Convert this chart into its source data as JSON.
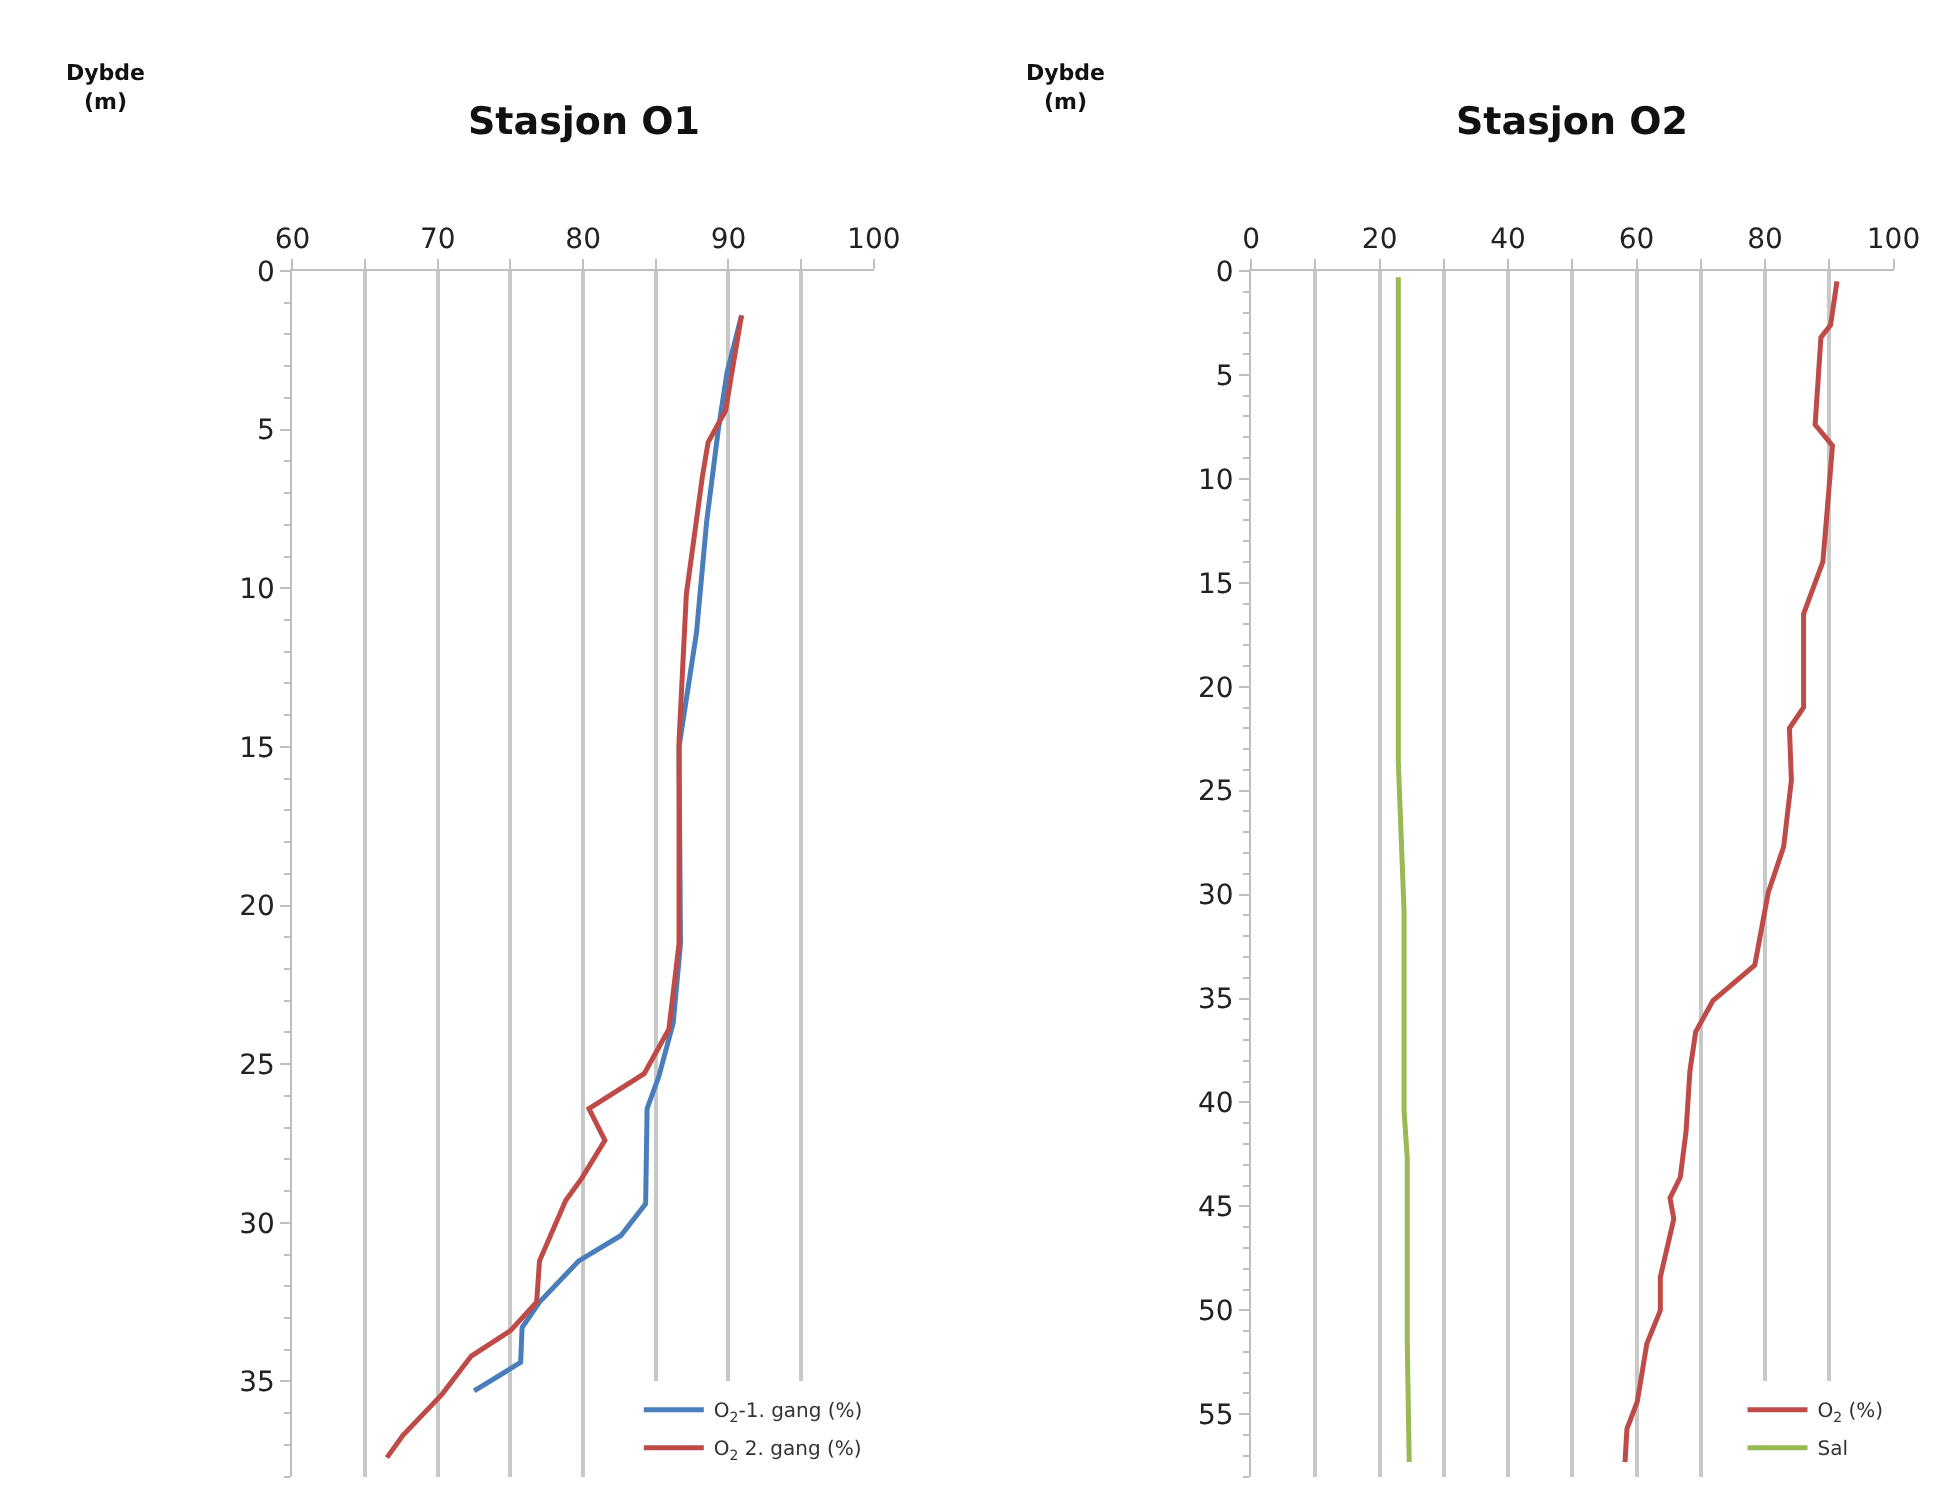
{
  "chart_data": [
    {
      "type": "line",
      "title": "Stasjon O1",
      "ylabel": "Dybde\n(m)",
      "legend": "bottom right",
      "grid": "x",
      "xlim": [
        60,
        100
      ],
      "xticks": [
        60,
        {
          "value": 65,
          "label": null
        },
        70,
        {
          "value": 75,
          "label": null
        },
        80,
        {
          "value": 85,
          "label": null
        },
        90,
        {
          "value": 95,
          "label": null
        },
        100
      ],
      "ylim": [
        38,
        0
      ],
      "yticks": [
        0,
        5,
        10,
        15,
        20,
        25,
        30,
        35
      ],
      "series": [
        {
          "name": "O$_{2}$-1. gang (%)",
          "color": "#4a7ebb",
          "x": [
            90.9,
            89.9,
            89.3,
            88.5,
            87.8,
            86.6,
            86.7,
            86.2,
            85.2,
            84.4,
            84.3,
            82.6,
            79.7,
            77.0,
            75.8,
            75.7,
            72.5
          ],
          "values": [
            1.4,
            3.2,
            5.0,
            7.9,
            11.4,
            15.0,
            21.2,
            23.7,
            25.4,
            26.4,
            29.4,
            30.4,
            31.2,
            32.5,
            33.3,
            34.4,
            35.3
          ]
        },
        {
          "name": "O$_{2}$ 2. gang (%)",
          "color": "#be4b48",
          "x": [
            90.9,
            90.2,
            89.8,
            88.6,
            88.2,
            87.1,
            86.6,
            86.6,
            85.9,
            84.2,
            80.4,
            81.5,
            79.9,
            78.8,
            77.0,
            76.8,
            75.0,
            72.3,
            70.3,
            67.6,
            66.5
          ],
          "values": [
            1.4,
            3.3,
            4.4,
            5.4,
            6.5,
            10.2,
            14.8,
            21.2,
            23.9,
            25.3,
            26.4,
            27.4,
            28.6,
            29.3,
            31.2,
            32.5,
            33.4,
            34.2,
            35.4,
            36.7,
            37.4
          ]
        }
      ]
    },
    {
      "type": "line",
      "title": "Stasjon O2",
      "ylabel": "Dybde\n(m)",
      "legend": "bottom right",
      "grid": "x",
      "xlim": [
        0,
        100
      ],
      "xticks": [
        0,
        {
          "value": 10,
          "label": null
        },
        20,
        {
          "value": 30,
          "label": null
        },
        40,
        {
          "value": 50,
          "label": null
        },
        60,
        {
          "value": 70,
          "label": null
        },
        80,
        {
          "value": 90,
          "label": null
        },
        100
      ],
      "ylim": [
        58,
        0
      ],
      "yticks": [
        0,
        5,
        10,
        15,
        20,
        25,
        30,
        35,
        40,
        45,
        50,
        55
      ],
      "series": [
        {
          "name": "O$_{2}$ (%)",
          "color": "#be4b48",
          "x": [
            91.2,
            90.2,
            88.7,
            87.8,
            90.5,
            89.6,
            89.0,
            86.0,
            86.0,
            83.8,
            84.1,
            82.9,
            80.5,
            78.4,
            71.9,
            69.2,
            68.3,
            67.7,
            66.8,
            65.2,
            65.8,
            63.7,
            63.7,
            61.6,
            60.1,
            58.5,
            58.2
          ],
          "values": [
            0.5,
            2.6,
            3.2,
            7.4,
            8.4,
            11.8,
            14.0,
            16.5,
            21.0,
            22.0,
            24.5,
            27.7,
            29.9,
            33.4,
            35.1,
            36.6,
            38.5,
            41.4,
            43.6,
            44.6,
            45.6,
            48.4,
            50.0,
            51.6,
            54.4,
            55.7,
            57.3
          ]
        },
        {
          "name": "Sal",
          "color": "#98b954",
          "x": [
            22.9,
            22.9,
            23.2,
            23.8,
            23.8,
            24.3,
            24.3,
            24.6
          ],
          "values": [
            0.3,
            23.6,
            26.0,
            30.8,
            40.4,
            42.7,
            51.6,
            57.3
          ]
        }
      ]
    }
  ]
}
